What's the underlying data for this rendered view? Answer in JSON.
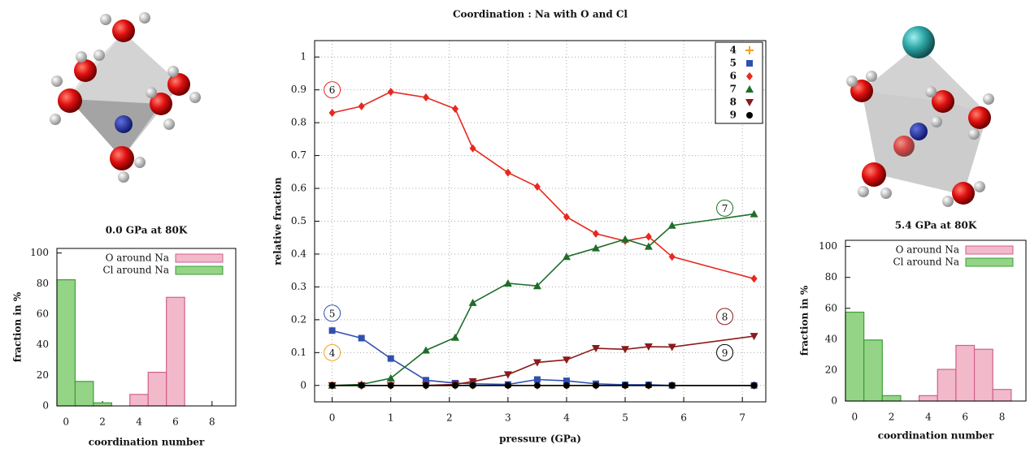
{
  "chart_data": [
    {
      "type": "bar",
      "title": "0.0 GPa at 80K",
      "xlabel": "coordination number",
      "ylabel": "fraction in %",
      "xlim": [
        -0.5,
        9.3
      ],
      "xticks": [
        0,
        2,
        4,
        6,
        8
      ],
      "ylim": [
        0,
        103
      ],
      "yticks": [
        0,
        20,
        40,
        60,
        80,
        100
      ],
      "grid": false,
      "legend": "top-right",
      "series": [
        {
          "name": "O around Na",
          "color": "#f2b9cb",
          "x": [
            4,
            5,
            6
          ],
          "values": [
            7.5,
            22,
            71
          ]
        },
        {
          "name": "Cl around Na",
          "color": "#94d486",
          "x": [
            0,
            1,
            2
          ],
          "values": [
            82.5,
            16,
            2
          ]
        }
      ]
    },
    {
      "type": "line",
      "title": "Coordination : Na with O and Cl",
      "xlabel": "pressure (GPa)",
      "ylabel": "relative fraction",
      "xlim": [
        -0.3,
        7.4
      ],
      "xticks": [
        0,
        1,
        2,
        3,
        4,
        5,
        6,
        7
      ],
      "ylim": [
        -0.05,
        1.05
      ],
      "yticks": [
        0,
        0.1,
        0.2,
        0.3,
        0.4,
        0.5,
        0.6,
        0.7,
        0.8,
        0.9,
        1
      ],
      "grid": true,
      "legend": "top-right",
      "x": [
        0,
        0.5,
        1,
        1.6,
        2.1,
        2.4,
        3,
        3.5,
        4,
        4.5,
        5,
        5.4,
        5.8,
        7.2
      ],
      "series": [
        {
          "name": "4",
          "color": "#f5a020",
          "marker": "plus",
          "values": [
            0,
            0,
            0,
            0,
            0,
            0,
            0,
            0,
            0,
            0,
            0,
            0,
            0,
            0
          ]
        },
        {
          "name": "5",
          "color": "#3050b0",
          "marker": "square",
          "values": [
            0.167,
            0.144,
            0.082,
            0.016,
            0.007,
            0.005,
            0.003,
            0.018,
            0.014,
            0.005,
            0.002,
            0.002,
            0,
            0
          ]
        },
        {
          "name": "6",
          "color": "#e8281e",
          "marker": "diamond",
          "values": [
            0.83,
            0.85,
            0.894,
            0.877,
            0.842,
            0.722,
            0.648,
            0.605,
            0.513,
            0.462,
            0.44,
            0.453,
            0.392,
            0.325
          ]
        },
        {
          "name": "7",
          "color": "#1e6e28",
          "marker": "triangle",
          "values": [
            0,
            0.003,
            0.022,
            0.107,
            0.146,
            0.252,
            0.311,
            0.303,
            0.392,
            0.418,
            0.445,
            0.423,
            0.487,
            0.522
          ]
        },
        {
          "name": "8",
          "color": "#8b1a1a",
          "marker": "triangle-down",
          "values": [
            0,
            0,
            0,
            0,
            0.003,
            0.012,
            0.033,
            0.07,
            0.078,
            0.113,
            0.11,
            0.118,
            0.117,
            0.15
          ]
        },
        {
          "name": "9",
          "color": "#000000",
          "marker": "circle",
          "values": [
            0,
            0,
            0,
            0,
            0,
            0,
            0,
            0,
            0,
            0,
            0,
            0,
            0,
            0
          ]
        }
      ],
      "annotations": [
        "6",
        "5",
        "4",
        "7",
        "8",
        "9"
      ]
    },
    {
      "type": "bar",
      "title": "5.4 GPa at 80K",
      "xlabel": "coordination number",
      "ylabel": "fraction in %",
      "xlim": [
        -0.5,
        9.3
      ],
      "xticks": [
        0,
        2,
        4,
        6,
        8
      ],
      "ylim": [
        0,
        104
      ],
      "yticks": [
        0,
        20,
        40,
        60,
        80,
        100
      ],
      "grid": false,
      "legend": "top-right",
      "series": [
        {
          "name": "O around Na",
          "color": "#f2b9cb",
          "x": [
            4,
            5,
            6,
            7,
            8
          ],
          "values": [
            3.5,
            20.5,
            36,
            33.5,
            7.5
          ]
        },
        {
          "name": "Cl around Na",
          "color": "#94d486",
          "x": [
            0,
            1,
            2
          ],
          "values": [
            57.5,
            39.5,
            3.5
          ]
        }
      ]
    }
  ]
}
